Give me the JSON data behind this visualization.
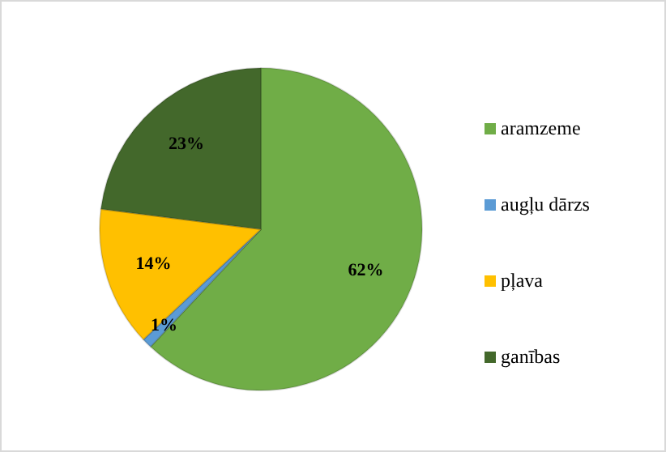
{
  "chart_data": {
    "type": "pie",
    "categories": [
      "aramzeme",
      "augļu dārzs",
      "pļava",
      "ganības"
    ],
    "values": [
      62,
      1,
      14,
      23
    ],
    "value_labels": [
      "62%",
      "1%",
      "14%",
      "23%"
    ],
    "colors": [
      "#70ad47",
      "#5b9bd5",
      "#ffc000",
      "#43682b"
    ],
    "legend": "right"
  }
}
